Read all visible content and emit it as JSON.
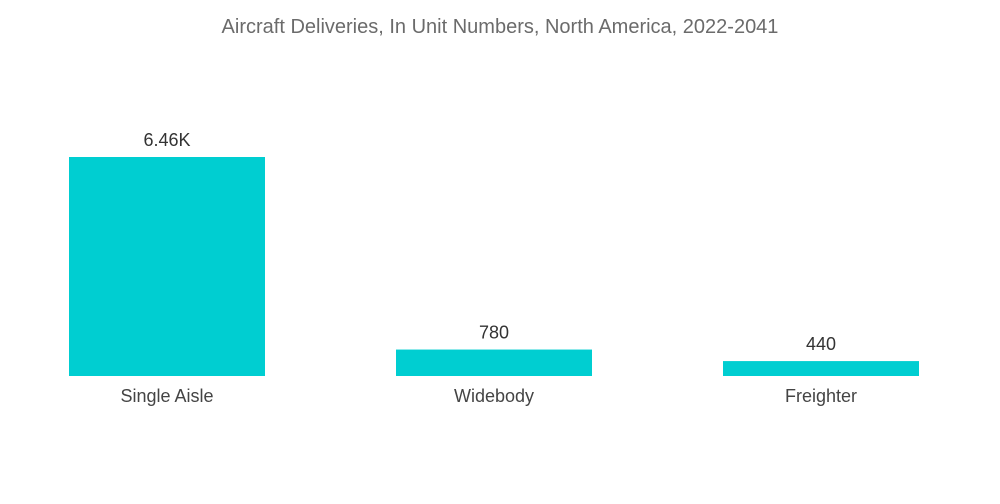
{
  "chart_data": {
    "type": "bar",
    "title": "Aircraft Deliveries, In Unit Numbers, North America, 2022-2041",
    "xlabel": "",
    "ylabel": "",
    "categories": [
      "Single Aisle",
      "Widebody",
      "Freighter"
    ],
    "values": [
      6460,
      780,
      440
    ],
    "data_labels": [
      "6.46K",
      "780",
      "440"
    ],
    "ylim": [
      0,
      6460
    ],
    "grid": false,
    "legend": "none",
    "bar_color": "#00CED1"
  }
}
